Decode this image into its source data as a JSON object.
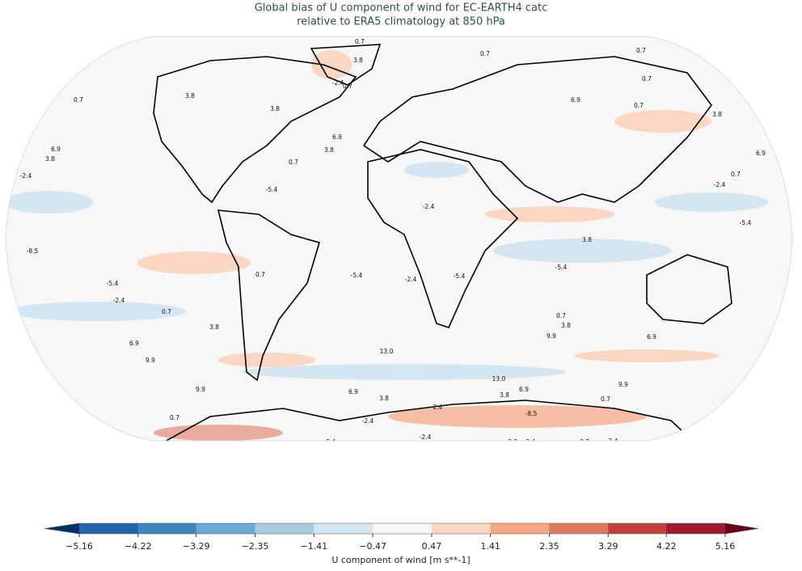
{
  "title_lines": [
    "Global bias of U component of wind for EC-EARTH4 catc",
    "relative to ERA5 climatology at 850 hPa"
  ],
  "colorbar": {
    "label": "U component of wind [m s**-1]",
    "ticks": [
      {
        "value": -5.16,
        "label": "−5.16"
      },
      {
        "value": -4.22,
        "label": "−4.22"
      },
      {
        "value": -3.29,
        "label": "−3.29"
      },
      {
        "value": -2.35,
        "label": "−2.35"
      },
      {
        "value": -1.41,
        "label": "−1.41"
      },
      {
        "value": -0.47,
        "label": "−0.47"
      },
      0.47,
      1.41,
      2.35,
      3.29,
      4.22,
      5.16
    ],
    "colors": [
      "#2166ac",
      "#3d86c0",
      "#6aaad2",
      "#a7cde3",
      "#d4e6f1",
      "#f7f7f7",
      "#fbd6c3",
      "#f4a582",
      "#de7861",
      "#c4403d",
      "#a3192f"
    ],
    "extend_colors": [
      "#053061",
      "#67001f"
    ]
  },
  "contour_labels": [
    0.7,
    3.8,
    -2.4,
    0.7,
    0.7,
    0.7,
    0.7,
    0.7,
    3.8,
    3.8,
    6.9,
    0.7,
    3.8,
    6.9,
    3.8,
    6.9,
    3.8,
    0.7,
    6.9,
    0.7,
    -2.4,
    -2.4,
    -5.4,
    -2.4,
    -5.4,
    3.8,
    -8.5,
    -5.4,
    0.7,
    -5.4,
    -2.4,
    -5.4,
    -5.4,
    -2.4,
    0.7,
    3.8,
    0.7,
    3.8,
    9.9,
    6.9,
    6.9,
    9.9,
    {
      "value": 13,
      "label": "13.0"
    },
    {
      "value": 13,
      "label": "13.0"
    },
    9.9,
    9.9,
    6.9,
    6.9,
    3.8,
    3.8,
    0.7,
    -2.4,
    0.7,
    -2.4,
    -8.5,
    -2.4,
    -2.4,
    -5.4,
    3.8,
    0.7,
    -2.4
  ]
}
